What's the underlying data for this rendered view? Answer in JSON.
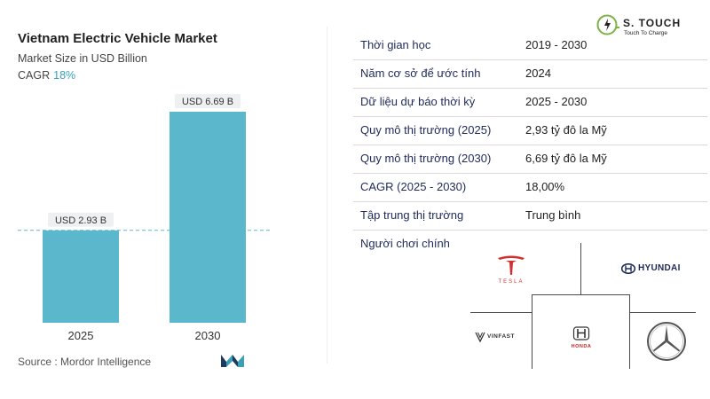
{
  "header": {
    "title": "Vietnam Electric Vehicle Market",
    "subtitle": "Market Size in USD Billion",
    "cagr_label": "CAGR",
    "cagr_value": "18%"
  },
  "source": "Source :  Mordor Intelligence",
  "chart_data": {
    "type": "bar",
    "title": "Vietnam Electric Vehicle Market",
    "subtitle": "Market Size in USD Billion",
    "categories": [
      "2025",
      "2030"
    ],
    "values": [
      2.93,
      6.69
    ],
    "data_labels": [
      "USD 2.93 B",
      "USD 6.69 B"
    ],
    "bar_color": "#5bb8cc",
    "reference_line": {
      "value": 2.93,
      "style": "dashed"
    },
    "ylim": [
      0,
      6.69
    ],
    "grid": false
  },
  "table": [
    {
      "label": "Thời gian học",
      "value": "2019 - 2030"
    },
    {
      "label": "Năm cơ sở để ước tính",
      "value": "2024"
    },
    {
      "label": "Dữ liệu dự báo thời kỳ",
      "value": "2025 - 2030"
    },
    {
      "label": "Quy mô thị trường (2025)",
      "value": "2,93 tỷ đô la Mỹ"
    },
    {
      "label": "Quy mô thị trường (2030)",
      "value": "6,69 tỷ đô la Mỹ"
    },
    {
      "label": "CAGR (2025 - 2030)",
      "value": "18,00%"
    },
    {
      "label": "Tập trung thị trường",
      "value": "Trung bình"
    }
  ],
  "players": {
    "label": "Người chơi chính",
    "brands": [
      {
        "icon": "tesla-logo",
        "text": "TESLA"
      },
      {
        "icon": "hyundai-logo",
        "text": "HYUNDAI"
      },
      {
        "icon": "vinfast-logo",
        "text": "VINFAST"
      },
      {
        "icon": "honda-logo",
        "text": "HONDA"
      },
      {
        "icon": "mercedes-logo",
        "text": ""
      }
    ]
  },
  "brand_logo": {
    "name": "S. TOUCH",
    "tagline": "Touch To Charge"
  },
  "colors": {
    "accent": "#3aa0b6",
    "bar": "#5bb8cc",
    "tesla": "#d32f2f",
    "label_text": "#1f2a5a"
  }
}
